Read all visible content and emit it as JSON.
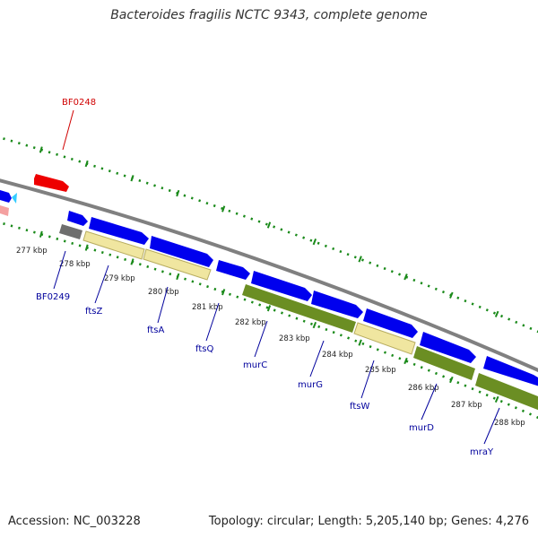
{
  "title": "Bacteroides fragilis NCTC 9343, complete genome",
  "accession": "Accession: NC_003228",
  "stats": "Topology: circular; Length: 5,205,140 bp; Genes: 4,276",
  "colors": {
    "backbone": "#808080",
    "cds_blue": "#0000ee",
    "ruler_green": "#1a8a1a",
    "label_blue": "#00009c",
    "label_red": "#d00000",
    "gene_red": "#ee0000",
    "yellow_track": "#f0e6a0",
    "olive_track": "#6b8e23",
    "grey_gene": "#6e6e6e",
    "pink_gene": "#f4a0a0",
    "cyan_gene": "#33ccff"
  },
  "kbp_labels": [
    "277 kbp",
    "278 kbp",
    "279 kbp",
    "280 kbp",
    "281 kbp",
    "282 kbp",
    "283 kbp",
    "284 kbp",
    "285 kbp",
    "286 kbp",
    "287 kbp",
    "288 kbp"
  ],
  "gene_labels": {
    "bf0248": "BF0248",
    "bf0249": "BF0249",
    "ftsZ": "ftsZ",
    "ftsA": "ftsA",
    "ftsQ": "ftsQ",
    "murC": "murC",
    "murG": "murG",
    "ftsW": "ftsW",
    "murD": "murD",
    "mraY": "mraY"
  }
}
